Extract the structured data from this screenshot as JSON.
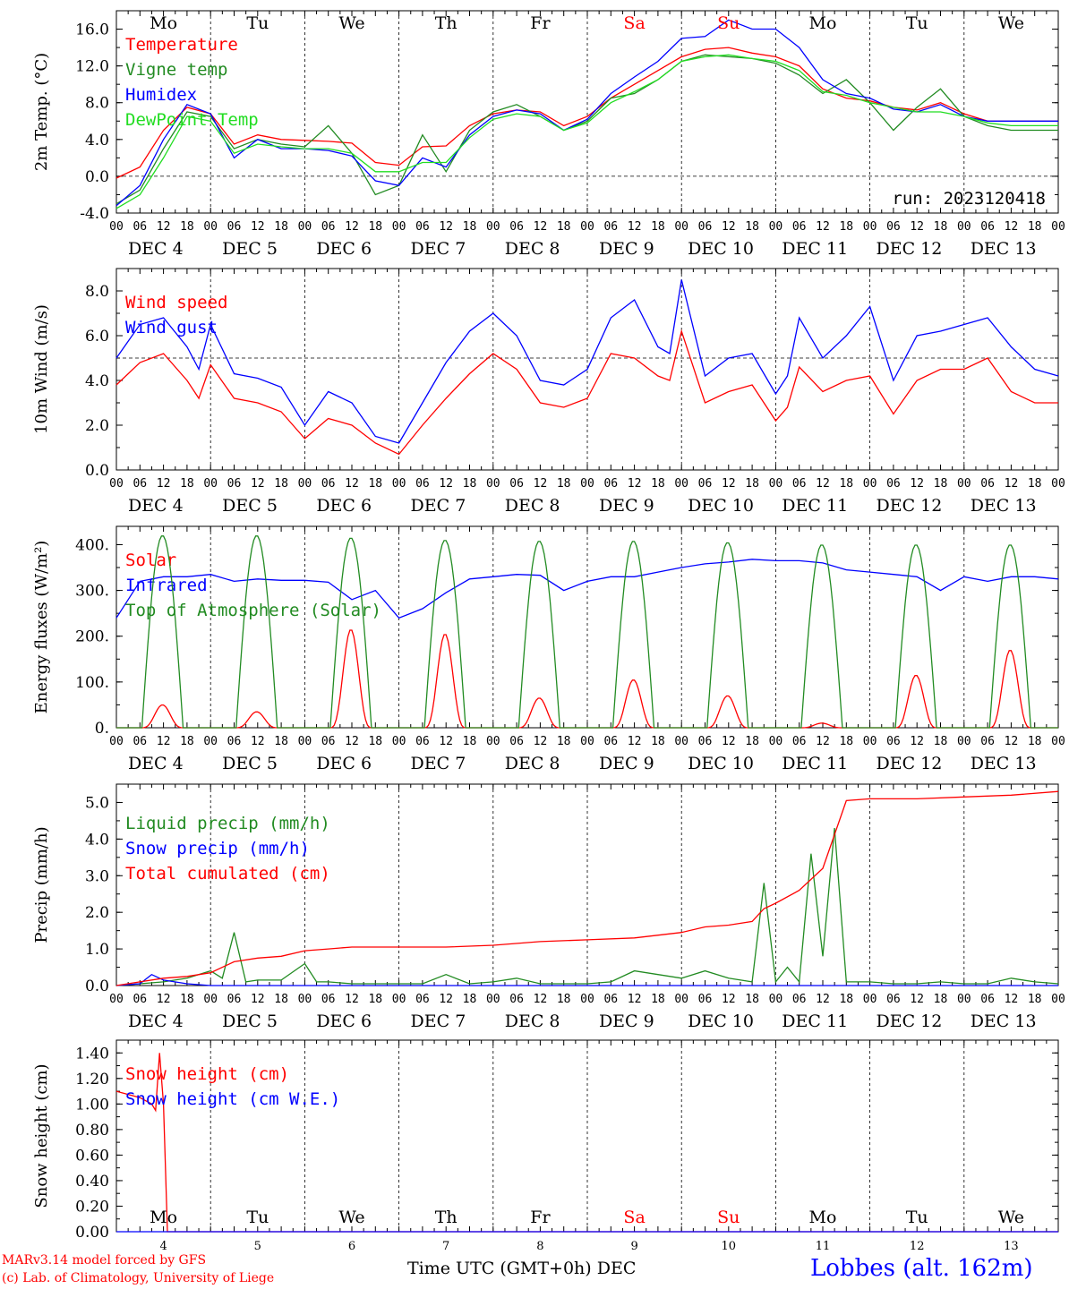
{
  "footer": {
    "model": "MARv3.14 model forced by GFS",
    "copyright": "(c) Lab. of Climatology, University of Liege",
    "xlabel": "Time UTC (GMT+0h) DEC",
    "station": "Lobbes (alt. 162m)"
  },
  "days": {
    "top_labels": [
      "Mo",
      "Tu",
      "We",
      "Th",
      "Fr",
      "Sa",
      "Su",
      "Mo",
      "Tu",
      "We"
    ],
    "weekend_flags": [
      false,
      false,
      false,
      false,
      false,
      true,
      true,
      false,
      false,
      false
    ],
    "date_labels": [
      "DEC 4",
      "DEC 5",
      "DEC 6",
      "DEC 7",
      "DEC 8",
      "DEC 9",
      "DEC 10",
      "DEC 11",
      "DEC 12",
      "DEC 13"
    ],
    "bottom_numbers": [
      "4",
      "5",
      "6",
      "7",
      "8",
      "9",
      "10",
      "11",
      "12",
      "13"
    ],
    "hour_ticks": [
      "00",
      "06",
      "12",
      "18"
    ],
    "final_tick": "00"
  },
  "colors": {
    "red": "#ff0000",
    "blue": "#0000ff",
    "green": "#228b22",
    "lightgreen": "#22dd22",
    "weekend": "#ff0000"
  },
  "chart_data": [
    {
      "id": "temp",
      "type": "line",
      "ylabel": "2m Temp. (°C)",
      "ylim": [
        -4,
        18
      ],
      "yticks": [
        "-4.0",
        "0.0",
        "4.0",
        "8.0",
        "12.0",
        "16.0"
      ],
      "ytick_values": [
        -4,
        0,
        4,
        8,
        12,
        16
      ],
      "refline": 0,
      "run_label": "run: 2023120418",
      "series": [
        {
          "name": "Temperature",
          "color": "red",
          "x": [
            0,
            6,
            12,
            18,
            24,
            30,
            36,
            42,
            48,
            54,
            60,
            66,
            72,
            78,
            84,
            90,
            96,
            102,
            108,
            114,
            120,
            126,
            132,
            138,
            144,
            150,
            156,
            162,
            168,
            174,
            180,
            186,
            192,
            198,
            204,
            210,
            216,
            222,
            228,
            234,
            240
          ],
          "y": [
            -0.2,
            1.0,
            5.0,
            7.5,
            6.8,
            3.5,
            4.5,
            4.0,
            3.9,
            3.8,
            3.6,
            1.5,
            1.2,
            3.2,
            3.3,
            5.5,
            6.8,
            7.2,
            7.0,
            5.5,
            6.5,
            8.5,
            10.0,
            11.5,
            13.0,
            13.8,
            14.0,
            13.4,
            13.0,
            12.0,
            9.5,
            8.5,
            8.2,
            7.5,
            7.2,
            8.0,
            6.8,
            6.0,
            6.0,
            6.0,
            6.0
          ]
        },
        {
          "name": "Vigne temp",
          "color": "green",
          "x": [
            0,
            6,
            12,
            18,
            24,
            30,
            36,
            42,
            48,
            54,
            60,
            66,
            72,
            78,
            84,
            90,
            96,
            102,
            108,
            114,
            120,
            126,
            132,
            138,
            144,
            150,
            156,
            162,
            168,
            174,
            180,
            186,
            192,
            198,
            204,
            210,
            216,
            222,
            228,
            234,
            240
          ],
          "y": [
            -3.0,
            -1.5,
            3.0,
            7.0,
            6.5,
            3.0,
            4.0,
            3.5,
            3.2,
            5.5,
            2.5,
            -2.0,
            -1.0,
            4.5,
            0.5,
            5.0,
            7.0,
            7.8,
            6.5,
            5.0,
            6.0,
            8.5,
            9.0,
            10.5,
            12.5,
            13.2,
            13.0,
            12.8,
            12.3,
            11.0,
            9.0,
            10.5,
            8.0,
            5.0,
            7.5,
            9.5,
            6.5,
            5.5,
            5.0,
            5.0,
            5.0
          ]
        },
        {
          "name": "Humidex",
          "color": "blue",
          "x": [
            0,
            6,
            12,
            18,
            24,
            30,
            36,
            42,
            48,
            54,
            60,
            66,
            72,
            78,
            84,
            90,
            96,
            102,
            108,
            114,
            120,
            126,
            132,
            138,
            144,
            150,
            156,
            162,
            168,
            174,
            180,
            186,
            192,
            198,
            204,
            210,
            216,
            222,
            228,
            234,
            240
          ],
          "y": [
            -3.2,
            -1.0,
            4.0,
            7.8,
            6.8,
            2.0,
            4.0,
            3.0,
            3.0,
            2.8,
            2.2,
            -0.5,
            -1.0,
            2.0,
            1.0,
            4.5,
            6.5,
            7.2,
            6.8,
            5.0,
            6.2,
            9.0,
            10.8,
            12.5,
            15.0,
            15.2,
            17.0,
            16.0,
            16.0,
            14.0,
            10.5,
            9.0,
            8.5,
            7.3,
            7.0,
            7.8,
            6.5,
            6.0,
            6.0,
            6.0,
            6.0
          ]
        },
        {
          "name": "DewPoint Temp",
          "color": "lightgreen",
          "x": [
            0,
            6,
            12,
            18,
            24,
            30,
            36,
            42,
            48,
            54,
            60,
            66,
            72,
            78,
            84,
            90,
            96,
            102,
            108,
            114,
            120,
            126,
            132,
            138,
            144,
            150,
            156,
            162,
            168,
            174,
            180,
            186,
            192,
            198,
            204,
            210,
            216,
            222,
            228,
            234,
            240
          ],
          "y": [
            -3.5,
            -2.0,
            2.0,
            6.5,
            6.0,
            2.5,
            3.5,
            3.2,
            3.0,
            3.0,
            2.5,
            0.5,
            0.5,
            1.5,
            1.5,
            4.2,
            6.2,
            6.8,
            6.5,
            5.0,
            5.8,
            8.0,
            9.2,
            10.5,
            12.5,
            13.0,
            13.2,
            12.8,
            12.5,
            11.5,
            9.2,
            8.8,
            8.0,
            7.5,
            7.0,
            7.0,
            6.5,
            5.8,
            5.5,
            5.5,
            5.5
          ]
        }
      ]
    },
    {
      "id": "wind",
      "type": "line",
      "ylabel": "10m Wind (m/s)",
      "ylim": [
        0,
        9
      ],
      "yticks": [
        "0.0",
        "2.0",
        "4.0",
        "6.0",
        "8.0"
      ],
      "ytick_values": [
        0,
        2,
        4,
        6,
        8
      ],
      "refline": 5,
      "series": [
        {
          "name": "Wind speed",
          "color": "red",
          "x": [
            0,
            6,
            12,
            18,
            21,
            24,
            30,
            36,
            42,
            48,
            54,
            60,
            66,
            72,
            78,
            84,
            90,
            96,
            102,
            108,
            114,
            120,
            126,
            132,
            138,
            141,
            144,
            150,
            156,
            162,
            168,
            171,
            174,
            180,
            186,
            192,
            198,
            204,
            210,
            216,
            222,
            228,
            234,
            240
          ],
          "y": [
            3.8,
            4.8,
            5.2,
            4.0,
            3.2,
            4.7,
            3.2,
            3.0,
            2.6,
            1.4,
            2.3,
            2.0,
            1.2,
            0.7,
            2.0,
            3.2,
            4.3,
            5.2,
            4.5,
            3.0,
            2.8,
            3.2,
            5.2,
            5.0,
            4.2,
            4.0,
            6.2,
            3.0,
            3.5,
            3.8,
            2.2,
            2.8,
            4.6,
            3.5,
            4.0,
            4.2,
            2.5,
            4.0,
            4.5,
            4.5,
            5.0,
            3.5,
            3.0,
            3.0
          ]
        },
        {
          "name": "Wind gust",
          "color": "blue",
          "x": [
            0,
            6,
            12,
            18,
            21,
            24,
            30,
            36,
            42,
            48,
            54,
            60,
            66,
            72,
            78,
            84,
            90,
            96,
            102,
            108,
            114,
            120,
            126,
            132,
            138,
            141,
            144,
            150,
            156,
            162,
            168,
            171,
            174,
            180,
            186,
            192,
            198,
            204,
            210,
            216,
            222,
            228,
            234,
            240
          ],
          "y": [
            5.0,
            6.5,
            6.8,
            5.5,
            4.5,
            6.5,
            4.3,
            4.1,
            3.7,
            2.0,
            3.5,
            3.0,
            1.5,
            1.2,
            3.0,
            4.8,
            6.2,
            7.0,
            6.0,
            4.0,
            3.8,
            4.5,
            6.8,
            7.6,
            5.5,
            5.2,
            8.5,
            4.2,
            5.0,
            5.2,
            3.4,
            4.2,
            6.8,
            5.0,
            6.0,
            7.3,
            4.0,
            6.0,
            6.2,
            6.5,
            6.8,
            5.5,
            4.5,
            4.2
          ]
        }
      ]
    },
    {
      "id": "energy",
      "type": "line",
      "ylabel": "Energy fluxes (W/m²)",
      "ylim": [
        0,
        440
      ],
      "yticks": [
        "0.",
        "100.",
        "200.",
        "300.",
        "400."
      ],
      "ytick_values": [
        0,
        100,
        200,
        300,
        400
      ],
      "series": [
        {
          "name": "Solar",
          "color": "red",
          "peaks": [
            50,
            35,
            215,
            205,
            65,
            105,
            70,
            10,
            115,
            170
          ]
        },
        {
          "name": "Infrared",
          "color": "blue",
          "x": [
            0,
            6,
            12,
            18,
            24,
            30,
            36,
            42,
            48,
            54,
            60,
            66,
            72,
            78,
            84,
            90,
            96,
            102,
            108,
            114,
            120,
            126,
            132,
            138,
            144,
            150,
            156,
            162,
            168,
            174,
            180,
            186,
            192,
            198,
            204,
            210,
            216,
            222,
            228,
            234,
            240
          ],
          "y": [
            240,
            320,
            330,
            330,
            335,
            320,
            325,
            322,
            322,
            318,
            280,
            300,
            240,
            260,
            295,
            325,
            330,
            335,
            333,
            300,
            320,
            330,
            330,
            340,
            350,
            358,
            362,
            368,
            365,
            365,
            360,
            345,
            340,
            335,
            330,
            300,
            330,
            320,
            330,
            330,
            325
          ]
        },
        {
          "name": "Top of Atmosphere (Solar)",
          "color": "green",
          "peaks": [
            420,
            420,
            415,
            410,
            408,
            408,
            405,
            400,
            400,
            400
          ]
        }
      ]
    },
    {
      "id": "precip",
      "type": "line",
      "ylabel": "Precip (mm/h)",
      "ylim": [
        0,
        5.5
      ],
      "yticks": [
        "0.0",
        "1.0",
        "2.0",
        "3.0",
        "4.0",
        "5.0"
      ],
      "ytick_values": [
        0,
        1,
        2,
        3,
        4,
        5
      ],
      "series": [
        {
          "name": "Liquid precip (mm/h)",
          "color": "green",
          "x": [
            0,
            6,
            12,
            18,
            24,
            27,
            30,
            33,
            36,
            42,
            48,
            51,
            54,
            60,
            66,
            72,
            78,
            84,
            90,
            96,
            102,
            108,
            114,
            120,
            126,
            132,
            138,
            144,
            150,
            156,
            162,
            165,
            168,
            171,
            174,
            177,
            180,
            183,
            186,
            192,
            198,
            204,
            210,
            216,
            222,
            228,
            234,
            240
          ],
          "y": [
            0,
            0.05,
            0.1,
            0.2,
            0.4,
            0.2,
            1.45,
            0.1,
            0.15,
            0.15,
            0.6,
            0.1,
            0.1,
            0.05,
            0.05,
            0.05,
            0.05,
            0.3,
            0.05,
            0.1,
            0.2,
            0.05,
            0.05,
            0.05,
            0.1,
            0.4,
            0.3,
            0.2,
            0.4,
            0.2,
            0.1,
            2.8,
            0.1,
            0.5,
            0.1,
            3.6,
            0.8,
            4.3,
            0.1,
            0.1,
            0.05,
            0.05,
            0.1,
            0.05,
            0.05,
            0.2,
            0.1,
            0.05
          ]
        },
        {
          "name": "Snow precip (mm/h)",
          "color": "blue",
          "x": [
            0,
            6,
            9,
            12,
            18,
            24,
            240
          ],
          "y": [
            0,
            0.05,
            0.3,
            0.15,
            0.05,
            0.0,
            0.0
          ]
        },
        {
          "name": "Total cumulated (cm)",
          "color": "red",
          "x": [
            0,
            6,
            12,
            18,
            24,
            30,
            36,
            42,
            48,
            54,
            60,
            72,
            84,
            96,
            108,
            120,
            132,
            144,
            150,
            156,
            162,
            165,
            168,
            174,
            180,
            186,
            192,
            204,
            216,
            228,
            240
          ],
          "y": [
            0,
            0.1,
            0.2,
            0.25,
            0.35,
            0.65,
            0.75,
            0.8,
            0.95,
            1.0,
            1.05,
            1.05,
            1.05,
            1.1,
            1.2,
            1.25,
            1.3,
            1.45,
            1.6,
            1.65,
            1.75,
            2.1,
            2.25,
            2.6,
            3.2,
            5.05,
            5.1,
            5.1,
            5.15,
            5.2,
            5.3
          ]
        }
      ]
    },
    {
      "id": "snow",
      "type": "line",
      "ylabel": "Snow height (cm)",
      "ylim": [
        0,
        1.5
      ],
      "yticks": [
        "0.00",
        "0.20",
        "0.40",
        "0.60",
        "0.80",
        "1.00",
        "1.20",
        "1.40"
      ],
      "ytick_values": [
        0,
        0.2,
        0.4,
        0.6,
        0.8,
        1.0,
        1.2,
        1.4
      ],
      "series": [
        {
          "name": "Snow height (cm)",
          "color": "red",
          "x": [
            0,
            6,
            9,
            10,
            11,
            12,
            13,
            240
          ],
          "y": [
            1.1,
            1.05,
            1.0,
            0.95,
            1.4,
            1.0,
            0.0,
            0.0
          ]
        },
        {
          "name": "Snow height (cm W.E.)",
          "color": "blue",
          "x": [
            0,
            240
          ],
          "y": [
            0,
            0
          ]
        }
      ]
    }
  ]
}
